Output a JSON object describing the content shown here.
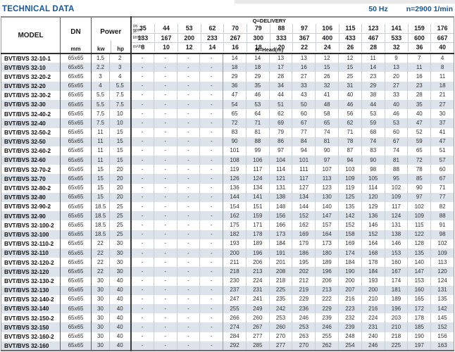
{
  "page": {
    "title": "TECHNICAL DATA",
    "frequency": "50 Hz",
    "speed": "n=2900 1/min"
  },
  "colors": {
    "accent_blue": "#15579f",
    "row_stripe": "#dce3ea",
    "border_dark": "#3a3a3a",
    "border_light": "#c8ced4"
  },
  "table": {
    "headers": {
      "model": "MODEL",
      "dn": "DN",
      "dn_unit": "mm",
      "power": "Power",
      "power_unit_kw": "kw",
      "power_unit_hp": "hp",
      "delivery_title": "Q=DELIVERY",
      "head_title": "H=Head(m)",
      "unit_rows": [
        {
          "id": "us-gpm",
          "label_lines": [
            "us",
            "gpm"
          ],
          "values": [
            "35",
            "44",
            "53",
            "62",
            "70",
            "79",
            "88",
            "97",
            "106",
            "115",
            "123",
            "141",
            "159",
            "176"
          ]
        },
        {
          "id": "l-min",
          "label_lines": [
            "l/min"
          ],
          "values": [
            "133",
            "167",
            "200",
            "233",
            "267",
            "300",
            "333",
            "367",
            "400",
            "433",
            "467",
            "533",
            "600",
            "667"
          ]
        },
        {
          "id": "m3-h",
          "label_lines": [
            "m³/h"
          ],
          "values": [
            "8",
            "10",
            "12",
            "14",
            "16",
            "18",
            "20",
            "22",
            "24",
            "26",
            "28",
            "32",
            "36",
            "40"
          ]
        }
      ]
    },
    "rows": [
      {
        "model": "BVT/BVS 32-10-1",
        "dn": "65x65",
        "kw": "1.5",
        "hp": "2",
        "heads": [
          "-",
          "-",
          "-",
          "-",
          "14",
          "14",
          "13",
          "13",
          "12",
          "12",
          "11",
          "9",
          "7",
          "4"
        ]
      },
      {
        "model": "BVT/BVS 32-10",
        "dn": "65x65",
        "kw": "2.2",
        "hp": "3",
        "heads": [
          "-",
          "-",
          "-",
          "-",
          "18",
          "18",
          "17",
          "16",
          "15",
          "15",
          "14",
          "13",
          "11",
          "8"
        ]
      },
      {
        "model": "BVT/BVS 32-20-2",
        "dn": "65x65",
        "kw": "3",
        "hp": "4",
        "heads": [
          "-",
          "-",
          "-",
          "-",
          "29",
          "29",
          "28",
          "27",
          "26",
          "25",
          "23",
          "20",
          "16",
          "11"
        ]
      },
      {
        "model": "BVT/BVS 32-20",
        "dn": "65x65",
        "kw": "4",
        "hp": "5.5",
        "heads": [
          "-",
          "-",
          "-",
          "-",
          "36",
          "35",
          "34",
          "33",
          "32",
          "31",
          "29",
          "27",
          "23",
          "18"
        ]
      },
      {
        "model": "BVT/BVS 32-30-2",
        "dn": "65x65",
        "kw": "5.5",
        "hp": "7.5",
        "heads": [
          "-",
          "-",
          "-",
          "-",
          "47",
          "46",
          "44",
          "43",
          "41",
          "40",
          "38",
          "33",
          "28",
          "21"
        ]
      },
      {
        "model": "BVT/BVS 32-30",
        "dn": "65x65",
        "kw": "5.5",
        "hp": "7.5",
        "heads": [
          "-",
          "-",
          "-",
          "-",
          "54",
          "53",
          "51",
          "50",
          "48",
          "46",
          "44",
          "40",
          "35",
          "27"
        ]
      },
      {
        "model": "BVT/BVS 32-40-2",
        "dn": "65x65",
        "kw": "7.5",
        "hp": "10",
        "heads": [
          "-",
          "-",
          "-",
          "-",
          "65",
          "64",
          "62",
          "60",
          "58",
          "56",
          "53",
          "46",
          "40",
          "30"
        ]
      },
      {
        "model": "BVT/BVS 32-40",
        "dn": "65x65",
        "kw": "7.5",
        "hp": "10",
        "heads": [
          "-",
          "-",
          "-",
          "-",
          "72",
          "71",
          "69",
          "67",
          "65",
          "62",
          "59",
          "53",
          "47",
          "37"
        ]
      },
      {
        "model": "BVT/BVS 32-50-2",
        "dn": "65x65",
        "kw": "11",
        "hp": "15",
        "heads": [
          "-",
          "-",
          "-",
          "-",
          "83",
          "81",
          "79",
          "77",
          "74",
          "71",
          "68",
          "60",
          "52",
          "41"
        ]
      },
      {
        "model": "BVT/BVS 32-50",
        "dn": "65x65",
        "kw": "11",
        "hp": "15",
        "heads": [
          "-",
          "-",
          "-",
          "-",
          "90",
          "88",
          "86",
          "84",
          "81",
          "78",
          "74",
          "67",
          "59",
          "47"
        ]
      },
      {
        "model": "BVT/BVS 32-60-2",
        "dn": "65x65",
        "kw": "11",
        "hp": "15",
        "heads": [
          "-",
          "-",
          "-",
          "-",
          "101",
          "99",
          "97",
          "94",
          "90",
          "87",
          "83",
          "74",
          "65",
          "51"
        ]
      },
      {
        "model": "BVT/BVS 32-60",
        "dn": "65x65",
        "kw": "11",
        "hp": "15",
        "heads": [
          "-",
          "-",
          "-",
          "-",
          "108",
          "106",
          "104",
          "101",
          "97",
          "94",
          "90",
          "81",
          "72",
          "57"
        ]
      },
      {
        "model": "BVT/BVS 32-70-2",
        "dn": "65x65",
        "kw": "15",
        "hp": "20",
        "heads": [
          "-",
          "-",
          "-",
          "-",
          "119",
          "117",
          "114",
          "111",
          "107",
          "103",
          "98",
          "88",
          "78",
          "60"
        ]
      },
      {
        "model": "BVT/BVS 32-70",
        "dn": "65x65",
        "kw": "15",
        "hp": "20",
        "heads": [
          "-",
          "-",
          "-",
          "-",
          "126",
          "124",
          "121",
          "117",
          "113",
          "109",
          "105",
          "95",
          "85",
          "67"
        ]
      },
      {
        "model": "BVT/BVS 32-80-2",
        "dn": "65x65",
        "kw": "15",
        "hp": "20",
        "heads": [
          "-",
          "-",
          "-",
          "-",
          "136",
          "134",
          "131",
          "127",
          "123",
          "119",
          "114",
          "102",
          "90",
          "71"
        ]
      },
      {
        "model": "BVT/BVS 32-80",
        "dn": "65x65",
        "kw": "15",
        "hp": "20",
        "heads": [
          "-",
          "-",
          "-",
          "-",
          "144",
          "141",
          "138",
          "134",
          "130",
          "125",
          "120",
          "109",
          "97",
          "77"
        ]
      },
      {
        "model": "BVT/BVS 32-90-2",
        "dn": "65x65",
        "kw": "18.5",
        "hp": "25",
        "heads": [
          "-",
          "-",
          "-",
          "-",
          "154",
          "151",
          "148",
          "144",
          "140",
          "135",
          "129",
          "117",
          "102",
          "82"
        ]
      },
      {
        "model": "BVT/BVS 32-90",
        "dn": "65x65",
        "kw": "18.5",
        "hp": "25",
        "heads": [
          "-",
          "-",
          "-",
          "-",
          "162",
          "159",
          "156",
          "152",
          "147",
          "142",
          "136",
          "124",
          "109",
          "88"
        ]
      },
      {
        "model": "BVT/BVS 32-100-2",
        "dn": "65x65",
        "kw": "18.5",
        "hp": "25",
        "heads": [
          "-",
          "-",
          "-",
          "-",
          "175",
          "171",
          "166",
          "162",
          "157",
          "152",
          "146",
          "131",
          "115",
          "91"
        ]
      },
      {
        "model": "BVT/BVS 32-100",
        "dn": "65x65",
        "kw": "18.5",
        "hp": "25",
        "heads": [
          "-",
          "-",
          "-",
          "-",
          "182",
          "178",
          "173",
          "169",
          "164",
          "158",
          "152",
          "138",
          "122",
          "98"
        ]
      },
      {
        "model": "BVT/BVS 32-110-2",
        "dn": "65x65",
        "kw": "22",
        "hp": "30",
        "heads": [
          "-",
          "-",
          "-",
          "-",
          "193",
          "189",
          "184",
          "179",
          "173",
          "169",
          "164",
          "146",
          "128",
          "102"
        ]
      },
      {
        "model": "BVT/BVS 32-110",
        "dn": "65x65",
        "kw": "22",
        "hp": "30",
        "heads": [
          "-",
          "-",
          "-",
          "-",
          "200",
          "196",
          "191",
          "186",
          "180",
          "174",
          "168",
          "153",
          "135",
          "109"
        ]
      },
      {
        "model": "BVT/BVS 32-120-2",
        "dn": "65x65",
        "kw": "22",
        "hp": "30",
        "heads": [
          "-",
          "-",
          "-",
          "-",
          "211",
          "206",
          "201",
          "195",
          "189",
          "184",
          "178",
          "160",
          "140",
          "113"
        ]
      },
      {
        "model": "BVT/BVS 32-120",
        "dn": "65x65",
        "kw": "22",
        "hp": "30",
        "heads": [
          "-",
          "-",
          "-",
          "-",
          "218",
          "213",
          "208",
          "202",
          "196",
          "190",
          "184",
          "167",
          "147",
          "120"
        ]
      },
      {
        "model": "BVT/BVS 32-130-2",
        "dn": "65x65",
        "kw": "30",
        "hp": "40",
        "heads": [
          "-",
          "-",
          "-",
          "-",
          "230",
          "224",
          "218",
          "212",
          "206",
          "200",
          "193",
          "174",
          "153",
          "124"
        ]
      },
      {
        "model": "BVT/BVS 32-130",
        "dn": "65x65",
        "kw": "30",
        "hp": "40",
        "heads": [
          "-",
          "-",
          "-",
          "-",
          "237",
          "231",
          "225",
          "219",
          "213",
          "207",
          "200",
          "181",
          "160",
          "131"
        ]
      },
      {
        "model": "BVT/BVS 32-140-2",
        "dn": "65x65",
        "kw": "30",
        "hp": "40",
        "heads": [
          "-",
          "-",
          "-",
          "-",
          "247",
          "241",
          "235",
          "229",
          "222",
          "216",
          "210",
          "189",
          "165",
          "135"
        ]
      },
      {
        "model": "BVT/BVS 32-140",
        "dn": "65x65",
        "kw": "30",
        "hp": "40",
        "heads": [
          "-",
          "-",
          "-",
          "-",
          "255",
          "249",
          "242",
          "236",
          "229",
          "223",
          "216",
          "196",
          "172",
          "142"
        ]
      },
      {
        "model": "BVT/BVS 32-150-2",
        "dn": "65x65",
        "kw": "30",
        "hp": "40",
        "heads": [
          "-",
          "-",
          "-",
          "-",
          "266",
          "260",
          "253",
          "246",
          "239",
          "232",
          "224",
          "203",
          "178",
          "145"
        ]
      },
      {
        "model": "BVT/BVS 32-150",
        "dn": "65x65",
        "kw": "30",
        "hp": "40",
        "heads": [
          "-",
          "-",
          "-",
          "-",
          "274",
          "267",
          "260",
          "253",
          "246",
          "239",
          "231",
          "210",
          "185",
          "152"
        ]
      },
      {
        "model": "BVT/BVS 32-160-2",
        "dn": "65x65",
        "kw": "30",
        "hp": "40",
        "heads": [
          "-",
          "-",
          "-",
          "-",
          "284",
          "277",
          "270",
          "263",
          "255",
          "248",
          "240",
          "218",
          "190",
          "156"
        ]
      },
      {
        "model": "BVT/BVS 32-160",
        "dn": "65x65",
        "kw": "30",
        "hp": "40",
        "heads": [
          "-",
          "-",
          "-",
          "-",
          "292",
          "285",
          "277",
          "270",
          "262",
          "254",
          "246",
          "225",
          "197",
          "163"
        ]
      }
    ]
  }
}
